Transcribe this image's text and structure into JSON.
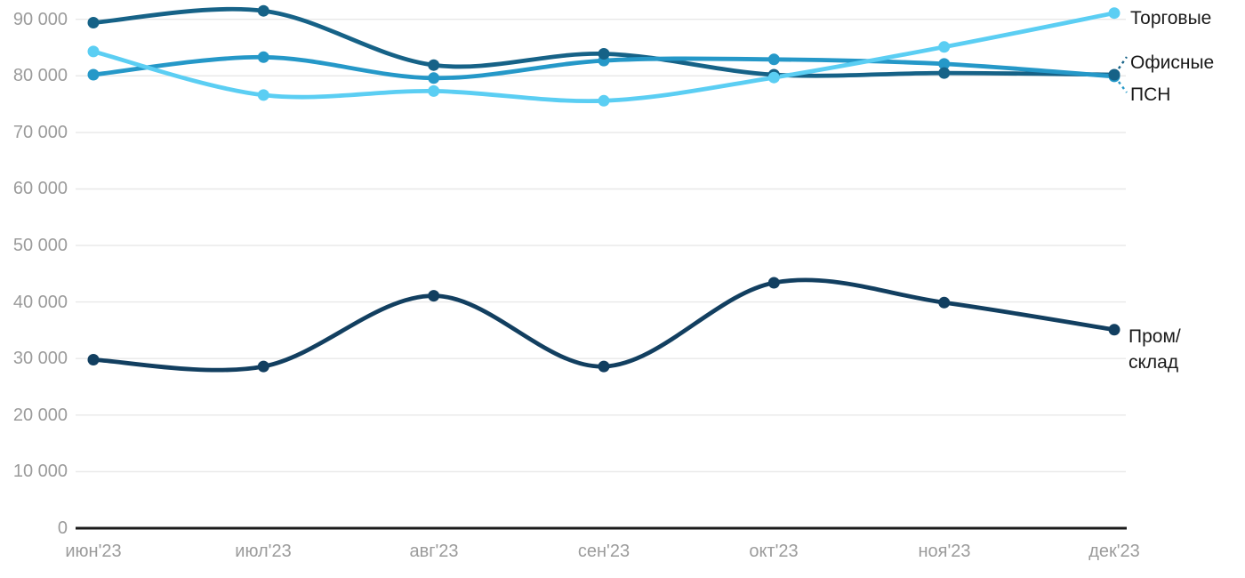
{
  "chart_data": {
    "type": "line",
    "title": "",
    "x": [
      "июн'23",
      "июл'23",
      "авг'23",
      "сен'23",
      "окт'23",
      "ноя'23",
      "дек'23"
    ],
    "series": [
      {
        "name": "Торговые",
        "slug": "torgovye",
        "color": "#5bcef3",
        "end_label": "Торговые",
        "values": [
          84300,
          76600,
          77300,
          75600,
          79700,
          85100,
          91100
        ]
      },
      {
        "name": "Офисные",
        "slug": "ofisnye",
        "color": "#166287",
        "end_label": "Офисные",
        "values": [
          89400,
          91500,
          81900,
          83900,
          80200,
          80500,
          80200
        ]
      },
      {
        "name": "ПСН",
        "slug": "psn",
        "color": "#2598c8",
        "end_label": "ПСН",
        "values": [
          80200,
          83300,
          79600,
          82700,
          82900,
          82100,
          79900
        ]
      },
      {
        "name": "Пром/склад",
        "slug": "prom-sklad",
        "color": "#123f60",
        "end_label": "Пром/\nсклад",
        "values": [
          29800,
          28600,
          41100,
          28600,
          43400,
          39900,
          35100
        ]
      }
    ],
    "ylim": [
      0,
      90000
    ],
    "ytick_step": 10000,
    "ytick_labels": [
      "0",
      "10 000",
      "20 000",
      "30 000",
      "40 000",
      "50 000",
      "60 000",
      "70 000",
      "80 000",
      "90 000"
    ],
    "grid": true,
    "grid_color": "#e8e8e8",
    "axis_color": "#1a1a1a",
    "tick_label_color": "#9b9b9b",
    "series_label_color": "#1a1a1a",
    "legend_position": "right-inline"
  }
}
